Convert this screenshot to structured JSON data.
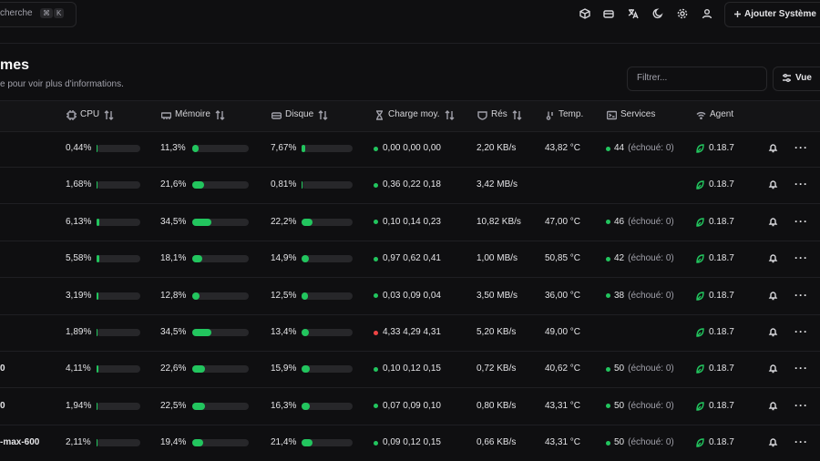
{
  "search": {
    "placeholder": "cherche",
    "shortcut_1": "⌘",
    "shortcut_2": "K"
  },
  "header_button": "Ajouter Système",
  "title": "mes",
  "subtitle": "e pour voir plus d'informations.",
  "filter_placeholder": "Filtrer...",
  "view_button": "Vue",
  "table": {
    "columns": [
      "CPU",
      "Mémoire",
      "Disque",
      "Charge moy.",
      "Rés",
      "Temp.",
      "Services",
      "Agent"
    ],
    "rows": [
      {
        "name": null,
        "cpu": {
          "value": 0.44,
          "label": "0,44%"
        },
        "memory": {
          "value": 11.3,
          "label": "11,3%"
        },
        "disk": {
          "value": 7.67,
          "label": "7,67%"
        },
        "load": "0,00 0,00 0,00",
        "load_color": "#22c55e",
        "network": "2,20 KB/s",
        "temperature": "43,82 °C",
        "services": "44",
        "services_failed": "(échoué: 0)",
        "agent": "0.18.7"
      },
      {
        "name": null,
        "cpu": {
          "value": 1.68,
          "label": "1,68%"
        },
        "memory": {
          "value": 21.6,
          "label": "21,6%"
        },
        "disk": {
          "value": 0.81,
          "label": "0,81%"
        },
        "load": "0,36 0,22 0,18",
        "load_color": "#22c55e",
        "network": "3,42 MB/s",
        "temperature": null,
        "services": null,
        "services_failed": null,
        "agent": "0.18.7"
      },
      {
        "name": null,
        "cpu": {
          "value": 6.13,
          "label": "6,13%"
        },
        "memory": {
          "value": 34.5,
          "label": "34,5%"
        },
        "disk": {
          "value": 22.2,
          "label": "22,2%"
        },
        "load": "0,10 0,14 0,23",
        "load_color": "#22c55e",
        "network": "10,82 KB/s",
        "temperature": "47,00 °C",
        "services": "46",
        "services_failed": "(échoué: 0)",
        "agent": "0.18.7"
      },
      {
        "name": null,
        "cpu": {
          "value": 5.58,
          "label": "5,58%"
        },
        "memory": {
          "value": 18.1,
          "label": "18,1%"
        },
        "disk": {
          "value": 14.9,
          "label": "14,9%"
        },
        "load": "0,97 0,62 0,41",
        "load_color": "#22c55e",
        "network": "1,00 MB/s",
        "temperature": "50,85 °C",
        "services": "42",
        "services_failed": "(échoué: 0)",
        "agent": "0.18.7"
      },
      {
        "name": null,
        "cpu": {
          "value": 3.19,
          "label": "3,19%"
        },
        "memory": {
          "value": 12.8,
          "label": "12,8%"
        },
        "disk": {
          "value": 12.5,
          "label": "12,5%"
        },
        "load": "0,03 0,09 0,04",
        "load_color": "#22c55e",
        "network": "3,50 MB/s",
        "temperature": "36,00 °C",
        "services": "38",
        "services_failed": "(échoué: 0)",
        "agent": "0.18.7"
      },
      {
        "name": null,
        "cpu": {
          "value": 1.89,
          "label": "1,89%"
        },
        "memory": {
          "value": 34.5,
          "label": "34,5%"
        },
        "disk": {
          "value": 13.4,
          "label": "13,4%"
        },
        "load": "4,33 4,29 4,31",
        "load_color": "#ef4444",
        "network": "5,20 KB/s",
        "temperature": "49,00 °C",
        "services": null,
        "services_failed": null,
        "agent": "0.18.7"
      },
      {
        "name": "0",
        "cpu": {
          "value": 4.11,
          "label": "4,11%"
        },
        "memory": {
          "value": 22.6,
          "label": "22,6%"
        },
        "disk": {
          "value": 15.9,
          "label": "15,9%"
        },
        "load": "0,10 0,12 0,15",
        "load_color": "#22c55e",
        "network": "0,72 KB/s",
        "temperature": "40,62 °C",
        "services": "50",
        "services_failed": "(échoué: 0)",
        "agent": "0.18.7"
      },
      {
        "name": "0",
        "cpu": {
          "value": 1.94,
          "label": "1,94%"
        },
        "memory": {
          "value": 22.5,
          "label": "22,5%"
        },
        "disk": {
          "value": 16.3,
          "label": "16,3%"
        },
        "load": "0,07 0,09 0,10",
        "load_color": "#22c55e",
        "network": "0,80 KB/s",
        "temperature": "43,31 °C",
        "services": "50",
        "services_failed": "(échoué: 0)",
        "agent": "0.18.7"
      },
      {
        "name": "-max-600",
        "cpu": {
          "value": 2.11,
          "label": "2,11%"
        },
        "memory": {
          "value": 19.4,
          "label": "19,4%"
        },
        "disk": {
          "value": 21.4,
          "label": "21,4%"
        },
        "load": "0,09 0,12 0,15",
        "load_color": "#22c55e",
        "network": "0,66 KB/s",
        "temperature": "43,31 °C",
        "services": "50",
        "services_failed": "(échoué: 0)",
        "agent": "0.18.7"
      }
    ]
  }
}
